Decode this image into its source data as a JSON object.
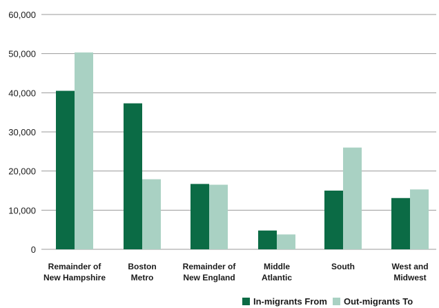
{
  "chart_data": {
    "type": "bar",
    "title": "",
    "xlabel": "",
    "ylabel": "",
    "ylim": [
      0,
      60000
    ],
    "yticks": [
      0,
      10000,
      20000,
      30000,
      40000,
      50000,
      60000
    ],
    "ytick_labels": [
      "0",
      "10,000",
      "20,000",
      "30,000",
      "40,000",
      "50,000",
      "60,000"
    ],
    "grid": true,
    "legend_position": "bottom-right",
    "categories": [
      [
        "Remainder of",
        "New Hampshire"
      ],
      [
        "Boston",
        "Metro"
      ],
      [
        "Remainder of",
        "New England"
      ],
      [
        "Middle",
        "Atlantic"
      ],
      [
        "South"
      ],
      [
        "West and",
        "Midwest"
      ]
    ],
    "series": [
      {
        "name": "In-migrants From",
        "color": "#0b6b45",
        "values": [
          40500,
          37300,
          16700,
          4800,
          15000,
          13100
        ]
      },
      {
        "name": "Out-migrants To",
        "color": "#a9d1c3",
        "values": [
          50300,
          17900,
          16500,
          3800,
          26000,
          15300
        ]
      }
    ]
  }
}
